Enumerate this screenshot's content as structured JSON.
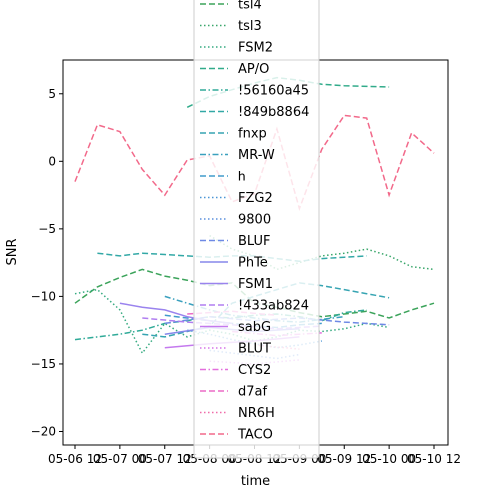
{
  "chart_data": {
    "type": "line",
    "xlabel": "time",
    "ylabel": "SNR",
    "x_ticks": [
      "05-06 12",
      "05-07 00",
      "05-07 12",
      "05-08 00",
      "05-08 12",
      "05-09 00",
      "05-09 12",
      "05-10 00",
      "05-10 12"
    ],
    "x_range": [
      "05-06 12",
      "05-10 12"
    ],
    "y_ticks": [
      5,
      0,
      -5,
      -10,
      -15,
      -20
    ],
    "ylim": [
      -21,
      7.5
    ],
    "grid": false,
    "legend_placement": "top-center",
    "series": [
      {
        "name": "tsl4",
        "color": "#3ba35a",
        "dash": "dashed",
        "points": [
          [
            "05-06 12",
            -10.5
          ],
          [
            "05-06 18",
            -9.3
          ],
          [
            "05-07 00",
            -8.6
          ],
          [
            "05-07 06",
            -8.0
          ],
          [
            "05-07 12",
            -8.5
          ],
          [
            "05-07 18",
            -8.8
          ],
          [
            "05-08 00",
            -9.2
          ],
          [
            "05-08 06",
            -9.0
          ],
          [
            "05-08 12",
            -10.5
          ],
          [
            "05-08 18",
            -10.8
          ],
          [
            "05-09 00",
            -11.2
          ],
          [
            "05-09 06",
            -11.5
          ],
          [
            "05-09 12",
            -11.3
          ],
          [
            "05-09 18",
            -11.1
          ],
          [
            "05-10 00",
            -11.6
          ],
          [
            "05-10 06",
            -11.0
          ],
          [
            "05-10 12",
            -10.5
          ]
        ]
      },
      {
        "name": "tsl3",
        "color": "#38a66a",
        "dash": "dotted",
        "points": [
          [
            "05-08 00",
            -5.5
          ],
          [
            "05-08 06",
            -6.5
          ],
          [
            "05-08 12",
            -7.0
          ],
          [
            "05-08 18",
            -8.0
          ],
          [
            "05-09 00",
            -7.5
          ],
          [
            "05-09 06",
            -7.0
          ],
          [
            "05-09 12",
            -6.8
          ],
          [
            "05-09 18",
            -6.5
          ],
          [
            "05-10 00",
            -7.0
          ],
          [
            "05-10 06",
            -7.8
          ],
          [
            "05-10 12",
            -8.0
          ]
        ]
      },
      {
        "name": "FSM2",
        "color": "#35aa80",
        "dash": "dotted",
        "points": [
          [
            "05-06 12",
            -9.8
          ],
          [
            "05-06 18",
            -9.5
          ],
          [
            "05-07 00",
            -11.0
          ],
          [
            "05-07 06",
            -14.2
          ],
          [
            "05-07 12",
            -12.0
          ],
          [
            "05-07 18",
            -13.0
          ],
          [
            "05-08 00",
            -12.5
          ],
          [
            "05-08 06",
            -12.8
          ],
          [
            "05-08 12",
            -13.3
          ],
          [
            "05-08 18",
            -13.0
          ],
          [
            "05-09 00",
            -12.5
          ],
          [
            "05-09 06",
            -12.6
          ],
          [
            "05-09 12",
            -12.4
          ],
          [
            "05-09 18",
            -12.0
          ],
          [
            "05-10 00",
            -12.3
          ]
        ]
      },
      {
        "name": "AP/O",
        "color": "#31ab8a",
        "dash": "dashed",
        "points": [
          [
            "05-07 18",
            4.0
          ],
          [
            "05-08 00",
            4.8
          ],
          [
            "05-08 06",
            5.3
          ],
          [
            "05-08 12",
            5.8
          ],
          [
            "05-08 18",
            6.2
          ],
          [
            "05-09 00",
            6.0
          ],
          [
            "05-09 06",
            5.7
          ],
          [
            "05-09 12",
            5.6
          ],
          [
            "05-10 00",
            5.5
          ]
        ]
      },
      {
        "name": "!56160a45",
        "color": "#30aa98",
        "dash": "dashdot",
        "points": [
          [
            "05-06 12",
            -13.2
          ],
          [
            "05-06 18",
            -13.0
          ],
          [
            "05-07 00",
            -12.8
          ],
          [
            "05-07 06",
            -12.5
          ],
          [
            "05-07 12",
            -12.0
          ],
          [
            "05-07 18",
            -11.8
          ],
          [
            "05-08 00",
            -11.5
          ],
          [
            "05-08 06",
            -11.6
          ],
          [
            "05-08 12",
            -11.4
          ],
          [
            "05-08 18",
            -11.3
          ],
          [
            "05-09 00",
            -11.5
          ],
          [
            "05-09 06",
            -11.8
          ],
          [
            "05-09 12",
            -11.2
          ],
          [
            "05-09 18",
            -11.0
          ]
        ]
      },
      {
        "name": "!849b8864",
        "color": "#32a8a6",
        "dash": "dashed",
        "points": [
          [
            "05-06 18",
            -6.8
          ],
          [
            "05-07 00",
            -7.0
          ],
          [
            "05-07 06",
            -6.8
          ],
          [
            "05-07 12",
            -6.9
          ],
          [
            "05-07 18",
            -7.0
          ],
          [
            "05-08 00",
            -7.1
          ],
          [
            "05-08 06",
            -7.0
          ],
          [
            "05-08 12",
            -7.0
          ],
          [
            "05-08 18",
            -7.2
          ],
          [
            "05-09 00",
            -7.4
          ],
          [
            "05-09 06",
            -7.2
          ],
          [
            "05-09 12",
            -7.1
          ],
          [
            "05-09 18",
            -7.0
          ]
        ]
      },
      {
        "name": "fnxp",
        "color": "#36a4b2",
        "dash": "dashed",
        "points": [
          [
            "05-07 06",
            -12.8
          ],
          [
            "05-07 12",
            -13.0
          ],
          [
            "05-07 18",
            -12.6
          ],
          [
            "05-08 00",
            -12.2
          ],
          [
            "05-08 06",
            -10.5
          ],
          [
            "05-08 12",
            -10.0
          ],
          [
            "05-08 18",
            -9.5
          ],
          [
            "05-09 00",
            -9.0
          ],
          [
            "05-09 06",
            -9.2
          ],
          [
            "05-09 12",
            -9.5
          ],
          [
            "05-09 18",
            -9.8
          ],
          [
            "05-10 00",
            -10.1
          ]
        ]
      },
      {
        "name": "MR-W",
        "color": "#3aa0be",
        "dash": "dashdot",
        "points": [
          [
            "05-07 12",
            -10.0
          ],
          [
            "05-07 18",
            -10.5
          ],
          [
            "05-08 00",
            -11.0
          ],
          [
            "05-08 06",
            -11.4
          ],
          [
            "05-08 12",
            -11.6
          ],
          [
            "05-08 18",
            -11.8
          ],
          [
            "05-09 00",
            -11.9
          ],
          [
            "05-09 06",
            -11.7
          ],
          [
            "05-09 12",
            -11.5
          ]
        ]
      },
      {
        "name": "𐌷",
        "color": "#409bcb",
        "dash": "dashed",
        "points": [
          [
            "05-07 12",
            -11.4
          ],
          [
            "05-07 18",
            -11.6
          ],
          [
            "05-08 00",
            -11.8
          ],
          [
            "05-08 06",
            -12.0
          ],
          [
            "05-08 12",
            -12.2
          ],
          [
            "05-08 18",
            -12.3
          ],
          [
            "05-09 00",
            -12.1
          ],
          [
            "05-09 06",
            -12.0
          ]
        ]
      },
      {
        "name": "FZG2",
        "color": "#4b96d6",
        "dash": "dotted",
        "points": [
          [
            "05-07 18",
            -12.5
          ],
          [
            "05-08 00",
            -12.8
          ],
          [
            "05-08 06",
            -13.2
          ],
          [
            "05-08 12",
            -13.5
          ],
          [
            "05-08 18",
            -13.8
          ],
          [
            "05-09 00",
            -13.6
          ],
          [
            "05-09 06",
            -13.3
          ]
        ]
      },
      {
        "name": "9800",
        "color": "#5a8fdd",
        "dash": "dotted",
        "points": [
          [
            "05-08 00",
            -14.0
          ],
          [
            "05-08 06",
            -14.2
          ],
          [
            "05-08 12",
            -14.4
          ],
          [
            "05-08 18",
            -14.6
          ],
          [
            "05-09 00",
            -14.3
          ]
        ]
      },
      {
        "name": "BLUF",
        "color": "#6e89e5",
        "dash": "dashed",
        "points": [
          [
            "05-07 12",
            -12.0
          ],
          [
            "05-08 00",
            -11.5
          ],
          [
            "05-08 12",
            -11.8
          ],
          [
            "05-09 00",
            -11.6
          ],
          [
            "05-09 12",
            -11.9
          ],
          [
            "05-10 00",
            -12.1
          ]
        ]
      },
      {
        "name": "PhTe",
        "color": "#8587ea",
        "dash": "solid",
        "points": [
          [
            "05-07 12",
            -12.8
          ],
          [
            "05-08 00",
            -12.3
          ],
          [
            "05-08 12",
            -12.6
          ],
          [
            "05-09 00",
            -12.4
          ]
        ]
      },
      {
        "name": "FSM1",
        "color": "#9a83ee",
        "dash": "solid",
        "points": [
          [
            "05-07 00",
            -10.5
          ],
          [
            "05-07 06",
            -10.8
          ],
          [
            "05-07 12",
            -11.0
          ],
          [
            "05-07 18",
            -11.5
          ],
          [
            "05-08 00",
            -11.8
          ],
          [
            "05-08 06",
            -12.0
          ]
        ]
      },
      {
        "name": "!433ab824",
        "color": "#b07ef0",
        "dash": "dashed",
        "points": [
          [
            "05-07 06",
            -11.6
          ],
          [
            "05-07 18",
            -11.9
          ],
          [
            "05-08 06",
            -12.1
          ],
          [
            "05-08 18",
            -12.4
          ],
          [
            "05-09 06",
            -12.2
          ]
        ]
      },
      {
        "name": "sabG",
        "color": "#c479ee",
        "dash": "solid",
        "points": [
          [
            "05-07 12",
            -13.8
          ],
          [
            "05-08 00",
            -13.5
          ],
          [
            "05-08 12",
            -13.3
          ],
          [
            "05-09 00",
            -13.0
          ]
        ]
      },
      {
        "name": "BLUT",
        "color": "#d674e9",
        "dash": "dotted",
        "points": [
          [
            "05-08 00",
            -14.8
          ],
          [
            "05-08 12",
            -15.0
          ],
          [
            "05-09 00",
            -14.7
          ]
        ]
      },
      {
        "name": "CYS2",
        "color": "#e36fdd",
        "dash": "dashdot",
        "points": [
          [
            "05-08 06",
            -12.6
          ],
          [
            "05-08 18",
            -12.9
          ],
          [
            "05-09 06",
            -12.7
          ]
        ]
      },
      {
        "name": "d7af",
        "color": "#ec6bc6",
        "dash": "dashed",
        "points": [
          [
            "05-07 18",
            -11.3
          ],
          [
            "05-08 06",
            -11.1
          ],
          [
            "05-08 18",
            -11.4
          ]
        ]
      },
      {
        "name": "NR6H",
        "color": "#f06aa8",
        "dash": "dotted",
        "points": [
          [
            "05-08 12",
            -13.6
          ],
          [
            "05-09 00",
            -13.9
          ]
        ]
      },
      {
        "name": "TACO",
        "color": "#f2698a",
        "dash": "dashed",
        "points": [
          [
            "05-06 12",
            -1.5
          ],
          [
            "05-06 18",
            2.7
          ],
          [
            "05-07 00",
            2.2
          ],
          [
            "05-07 06",
            -0.6
          ],
          [
            "05-07 12",
            -2.5
          ],
          [
            "05-07 18",
            0.1
          ],
          [
            "05-08 00",
            0.4
          ],
          [
            "05-08 06",
            -3.0
          ],
          [
            "05-08 12",
            -2.4
          ],
          [
            "05-08 18",
            2.4
          ],
          [
            "05-09 00",
            -3.5
          ],
          [
            "05-09 06",
            0.9
          ],
          [
            "05-09 12",
            3.4
          ],
          [
            "05-09 18",
            3.2
          ],
          [
            "05-10 00",
            -2.5
          ],
          [
            "05-10 06",
            2.1
          ],
          [
            "05-10 12",
            0.6
          ]
        ]
      }
    ]
  }
}
